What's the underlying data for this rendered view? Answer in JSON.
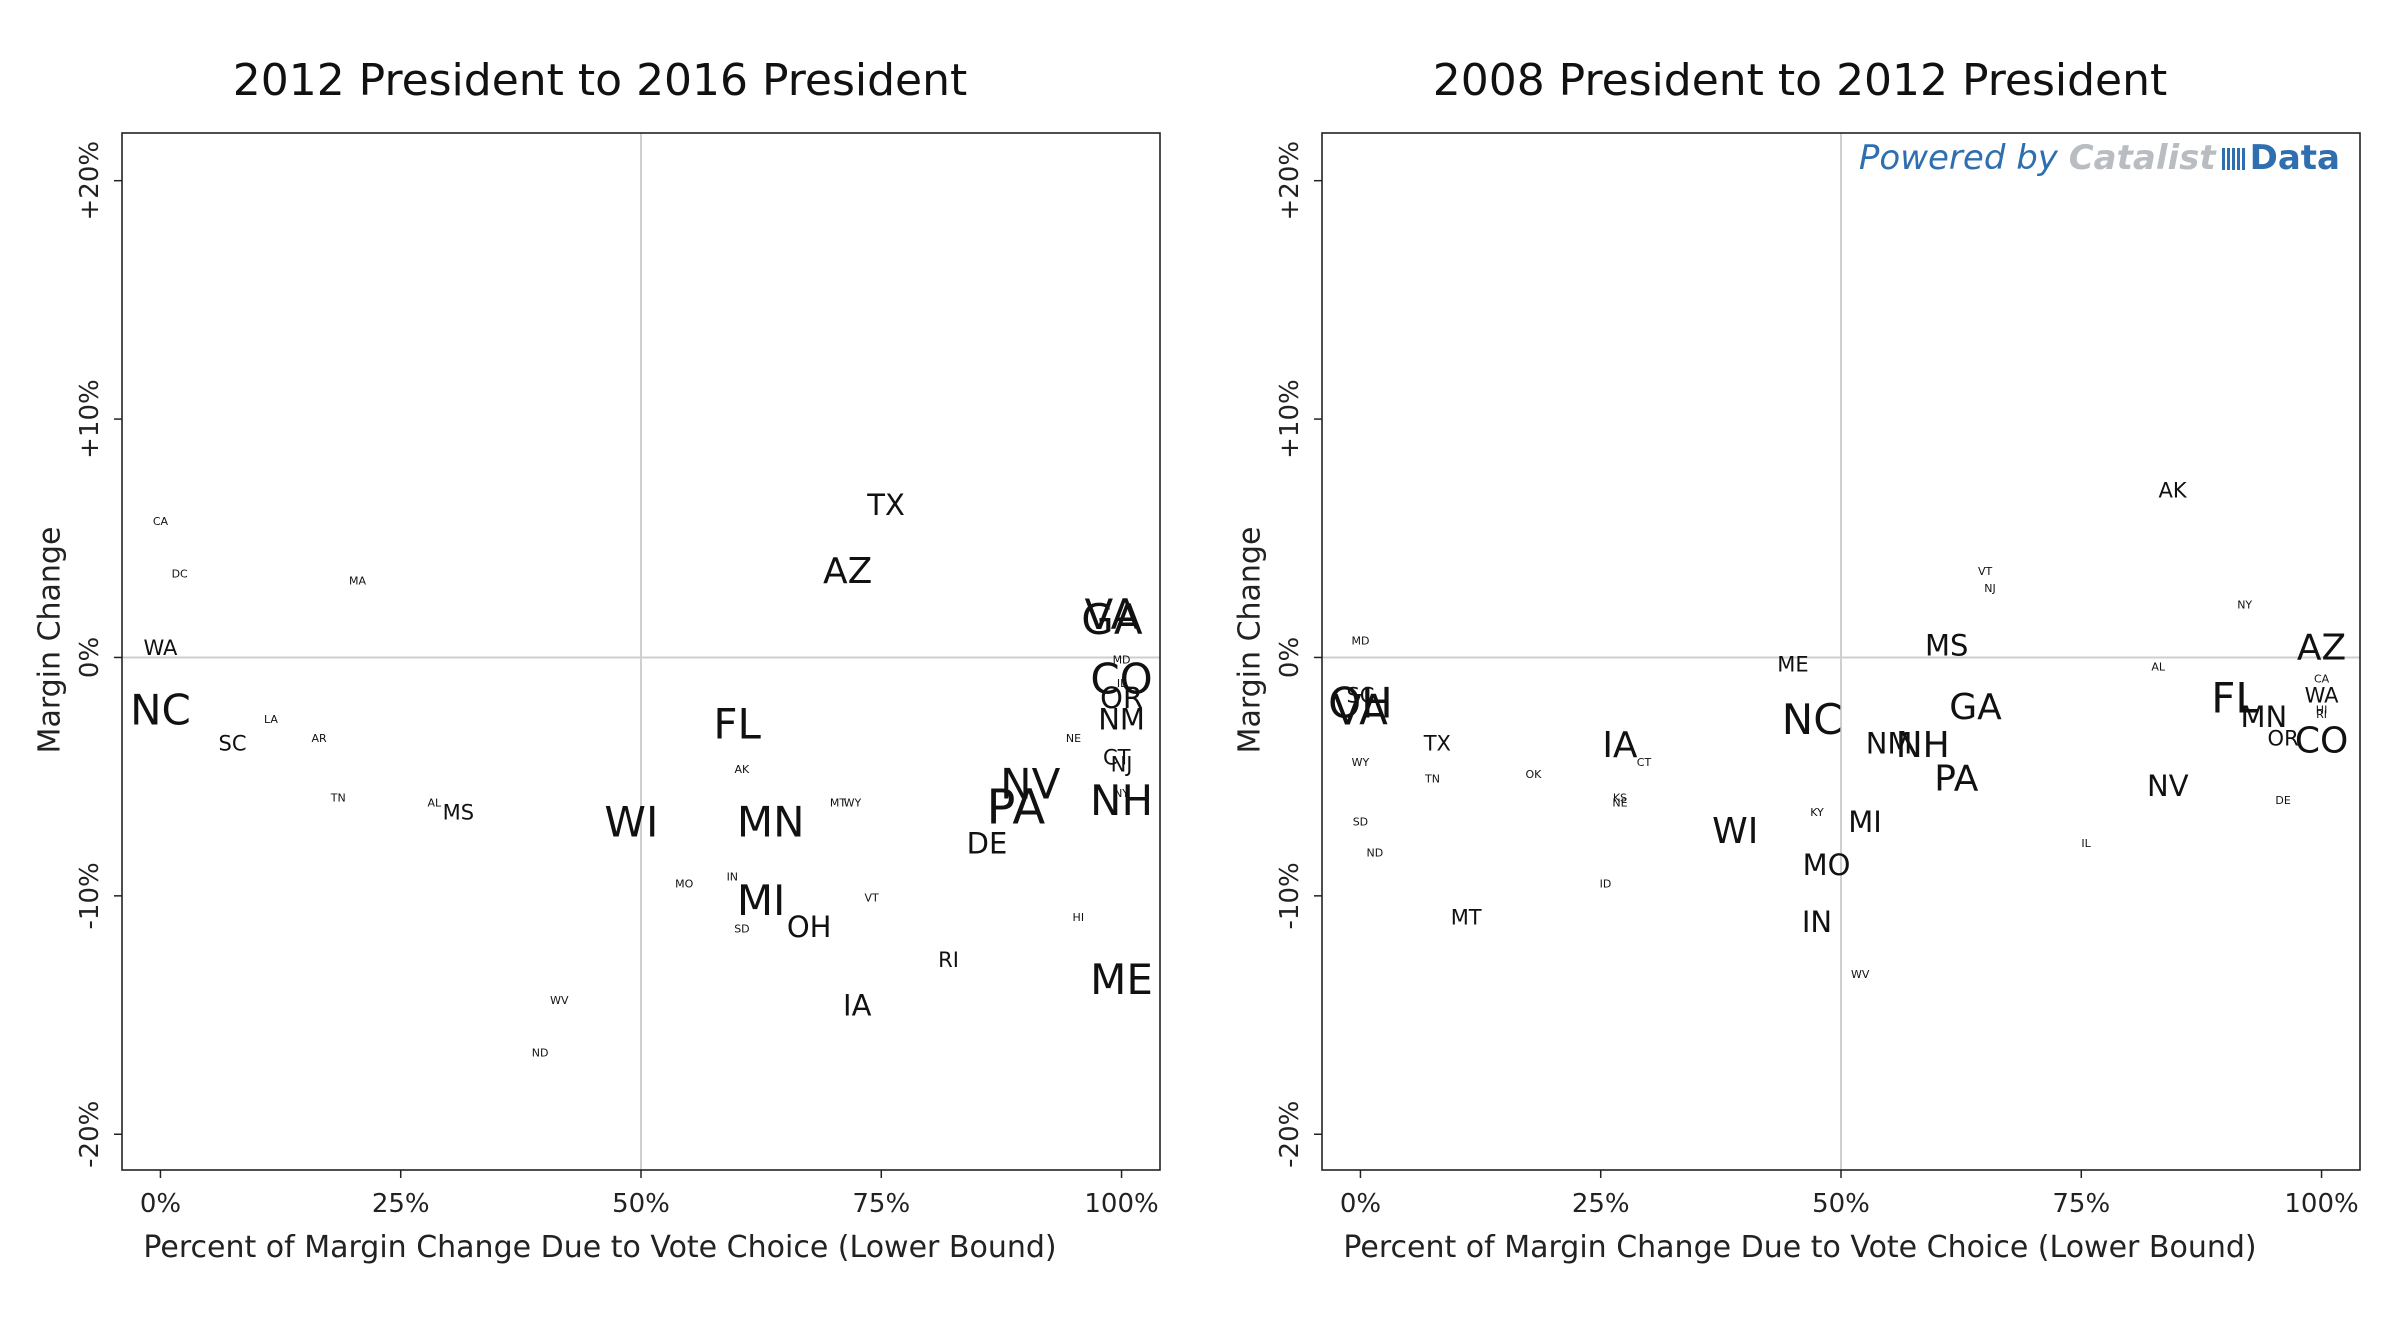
{
  "chart_data": [
    {
      "type": "scatter",
      "title": "2012 President to 2016 President",
      "xlabel": "Percent of Margin Change Due to Vote Choice (Lower Bound)",
      "ylabel": "Margin Change",
      "xlim": [
        -4,
        104
      ],
      "ylim": [
        -21.5,
        22
      ],
      "xticks": [
        0,
        25,
        50,
        75,
        100
      ],
      "xtick_labels": [
        "0%",
        "25%",
        "50%",
        "75%",
        "100%"
      ],
      "yticks": [
        -20,
        -10,
        0,
        10,
        20
      ],
      "ytick_labels": [
        "-20%",
        "-10%",
        "0%",
        "+10%",
        "+20%"
      ],
      "grid": "reference lines at x=50% and y=0%",
      "marker": "state abbreviation text, size scaled by electoral importance",
      "points": [
        {
          "label": "CA",
          "x": 0,
          "y": 5.7,
          "size": 1
        },
        {
          "label": "DC",
          "x": 2,
          "y": 3.5,
          "size": 1
        },
        {
          "label": "MA",
          "x": 20.5,
          "y": 3.2,
          "size": 1
        },
        {
          "label": "WA",
          "x": 0,
          "y": 0.4,
          "size": 2
        },
        {
          "label": "NC",
          "x": 0,
          "y": -2.2,
          "size": 5
        },
        {
          "label": "SC",
          "x": 7.5,
          "y": -3.6,
          "size": 2
        },
        {
          "label": "LA",
          "x": 11.5,
          "y": -2.6,
          "size": 1
        },
        {
          "label": "AR",
          "x": 16.5,
          "y": -3.4,
          "size": 1
        },
        {
          "label": "TN",
          "x": 18.5,
          "y": -5.9,
          "size": 1
        },
        {
          "label": "AL",
          "x": 28.5,
          "y": -6.1,
          "size": 1
        },
        {
          "label": "MS",
          "x": 31,
          "y": -6.5,
          "size": 2
        },
        {
          "label": "WV",
          "x": 41.5,
          "y": -14.4,
          "size": 1
        },
        {
          "label": "ND",
          "x": 39.5,
          "y": -16.6,
          "size": 1
        },
        {
          "label": "WI",
          "x": 49,
          "y": -6.9,
          "size": 5
        },
        {
          "label": "MO",
          "x": 54.5,
          "y": -9.5,
          "size": 1
        },
        {
          "label": "IN",
          "x": 59.5,
          "y": -9.2,
          "size": 1
        },
        {
          "label": "SD",
          "x": 60.5,
          "y": -11.4,
          "size": 1
        },
        {
          "label": "MI",
          "x": 62.5,
          "y": -10.2,
          "size": 5
        },
        {
          "label": "OH",
          "x": 67.5,
          "y": -11.3,
          "size": 3
        },
        {
          "label": "AK",
          "x": 60.5,
          "y": -4.7,
          "size": 1
        },
        {
          "label": "FL",
          "x": 60,
          "y": -2.8,
          "size": 5
        },
        {
          "label": "MN",
          "x": 63.5,
          "y": -6.9,
          "size": 5
        },
        {
          "label": "MT",
          "x": 70.5,
          "y": -6.1,
          "size": 1
        },
        {
          "label": "WY",
          "x": 72,
          "y": -6.1,
          "size": 1
        },
        {
          "label": "VT",
          "x": 74,
          "y": -10.1,
          "size": 1
        },
        {
          "label": "IA",
          "x": 72.5,
          "y": -14.6,
          "size": 3
        },
        {
          "label": "TX",
          "x": 75.5,
          "y": 6.4,
          "size": 3
        },
        {
          "label": "AZ",
          "x": 71.5,
          "y": 3.6,
          "size": 4
        },
        {
          "label": "RI",
          "x": 82,
          "y": -12.7,
          "size": 2
        },
        {
          "label": "DE",
          "x": 86,
          "y": -7.8,
          "size": 3
        },
        {
          "label": "NV",
          "x": 90.5,
          "y": -5.3,
          "size": 5
        },
        {
          "label": "PA",
          "x": 89,
          "y": -6.3,
          "size": 6
        },
        {
          "label": "NE",
          "x": 95,
          "y": -3.4,
          "size": 1
        },
        {
          "label": "HI",
          "x": 95.5,
          "y": -10.9,
          "size": 1
        },
        {
          "label": "VA",
          "x": 99,
          "y": 1.8,
          "size": 5
        },
        {
          "label": "GA",
          "x": 99,
          "y": 1.6,
          "size": 5
        },
        {
          "label": "MD",
          "x": 100,
          "y": -0.1,
          "size": 1
        },
        {
          "label": "CO",
          "x": 100,
          "y": -0.9,
          "size": 5
        },
        {
          "label": "IL",
          "x": 100,
          "y": -1.1,
          "size": 1
        },
        {
          "label": "OR",
          "x": 100,
          "y": -1.7,
          "size": 3
        },
        {
          "label": "NM",
          "x": 100,
          "y": -2.6,
          "size": 3
        },
        {
          "label": "CT",
          "x": 99.5,
          "y": -4.2,
          "size": 2
        },
        {
          "label": "NJ",
          "x": 100,
          "y": -4.5,
          "size": 2
        },
        {
          "label": "NY",
          "x": 100,
          "y": -5.7,
          "size": 1
        },
        {
          "label": "NH",
          "x": 100,
          "y": -6.0,
          "size": 5
        },
        {
          "label": "ME",
          "x": 100,
          "y": -13.5,
          "size": 5
        }
      ]
    },
    {
      "type": "scatter",
      "title": "2008 President to 2012 President",
      "xlabel": "Percent of Margin Change Due to Vote Choice (Lower Bound)",
      "ylabel": "Margin Change",
      "xlim": [
        -4,
        104
      ],
      "ylim": [
        -21.5,
        22
      ],
      "xticks": [
        0,
        25,
        50,
        75,
        100
      ],
      "xtick_labels": [
        "0%",
        "25%",
        "50%",
        "75%",
        "100%"
      ],
      "yticks": [
        -20,
        -10,
        0,
        10,
        20
      ],
      "ytick_labels": [
        "-20%",
        "-10%",
        "0%",
        "+10%",
        "+20%"
      ],
      "grid": "reference lines at x=50% and y=0%",
      "marker": "state abbreviation text, size scaled by electoral importance",
      "points": [
        {
          "label": "MD",
          "x": 0,
          "y": 0.7,
          "size": 1
        },
        {
          "label": "OH",
          "x": 0,
          "y": -1.9,
          "size": 5
        },
        {
          "label": "SC",
          "x": 0,
          "y": -1.6,
          "size": 2
        },
        {
          "label": "VA",
          "x": 0,
          "y": -2.2,
          "size": 5
        },
        {
          "label": "WY",
          "x": 0,
          "y": -4.4,
          "size": 1
        },
        {
          "label": "SD",
          "x": 0,
          "y": -6.9,
          "size": 1
        },
        {
          "label": "ND",
          "x": 1.5,
          "y": -8.2,
          "size": 1
        },
        {
          "label": "TX",
          "x": 8,
          "y": -3.6,
          "size": 2
        },
        {
          "label": "TN",
          "x": 7.5,
          "y": -5.1,
          "size": 1
        },
        {
          "label": "MT",
          "x": 11,
          "y": -10.9,
          "size": 2
        },
        {
          "label": "OK",
          "x": 18,
          "y": -4.9,
          "size": 1
        },
        {
          "label": "ID",
          "x": 25.5,
          "y": -9.5,
          "size": 1
        },
        {
          "label": "IA",
          "x": 27,
          "y": -3.7,
          "size": 4
        },
        {
          "label": "CT",
          "x": 29.5,
          "y": -4.4,
          "size": 1
        },
        {
          "label": "KS",
          "x": 27,
          "y": -5.9,
          "size": 1
        },
        {
          "label": "NE",
          "x": 27,
          "y": -6.1,
          "size": 1
        },
        {
          "label": "WI",
          "x": 39,
          "y": -7.3,
          "size": 4
        },
        {
          "label": "ME",
          "x": 45,
          "y": -0.3,
          "size": 2
        },
        {
          "label": "NC",
          "x": 47,
          "y": -2.6,
          "size": 5
        },
        {
          "label": "KY",
          "x": 47.5,
          "y": -6.5,
          "size": 1
        },
        {
          "label": "MI",
          "x": 52.5,
          "y": -6.9,
          "size": 3
        },
        {
          "label": "MO",
          "x": 48.5,
          "y": -8.7,
          "size": 3
        },
        {
          "label": "IN",
          "x": 47.5,
          "y": -11.1,
          "size": 3
        },
        {
          "label": "WV",
          "x": 52,
          "y": -13.3,
          "size": 1
        },
        {
          "label": "NM",
          "x": 55,
          "y": -3.6,
          "size": 3
        },
        {
          "label": "NH",
          "x": 58.5,
          "y": -3.7,
          "size": 4
        },
        {
          "label": "MS",
          "x": 61,
          "y": 0.5,
          "size": 3
        },
        {
          "label": "GA",
          "x": 64,
          "y": -2.1,
          "size": 4
        },
        {
          "label": "PA",
          "x": 62,
          "y": -5.1,
          "size": 4
        },
        {
          "label": "VT",
          "x": 65,
          "y": 3.6,
          "size": 1
        },
        {
          "label": "NJ",
          "x": 65.5,
          "y": 2.9,
          "size": 1
        },
        {
          "label": "IL",
          "x": 75.5,
          "y": -7.8,
          "size": 1
        },
        {
          "label": "AK",
          "x": 84.5,
          "y": 7.0,
          "size": 2
        },
        {
          "label": "AL",
          "x": 83,
          "y": -0.4,
          "size": 1
        },
        {
          "label": "NV",
          "x": 84,
          "y": -5.4,
          "size": 3
        },
        {
          "label": "NY",
          "x": 92,
          "y": 2.2,
          "size": 1
        },
        {
          "label": "FL",
          "x": 91,
          "y": -1.7,
          "size": 5
        },
        {
          "label": "MN",
          "x": 94,
          "y": -2.5,
          "size": 3
        },
        {
          "label": "OR",
          "x": 96,
          "y": -3.4,
          "size": 2
        },
        {
          "label": "AZ",
          "x": 100,
          "y": 0.4,
          "size": 4
        },
        {
          "label": "CA",
          "x": 100,
          "y": -0.9,
          "size": 1
        },
        {
          "label": "WA",
          "x": 100,
          "y": -1.6,
          "size": 2
        },
        {
          "label": "HI",
          "x": 100,
          "y": -2.2,
          "size": 1
        },
        {
          "label": "RI",
          "x": 100,
          "y": -2.4,
          "size": 1
        },
        {
          "label": "CO",
          "x": 100,
          "y": -3.5,
          "size": 4
        },
        {
          "label": "DE",
          "x": 96,
          "y": -6.0,
          "size": 1
        }
      ]
    }
  ],
  "watermark": {
    "powered_by": "Powered by",
    "catalist": "Catalist",
    "data": "Data"
  }
}
